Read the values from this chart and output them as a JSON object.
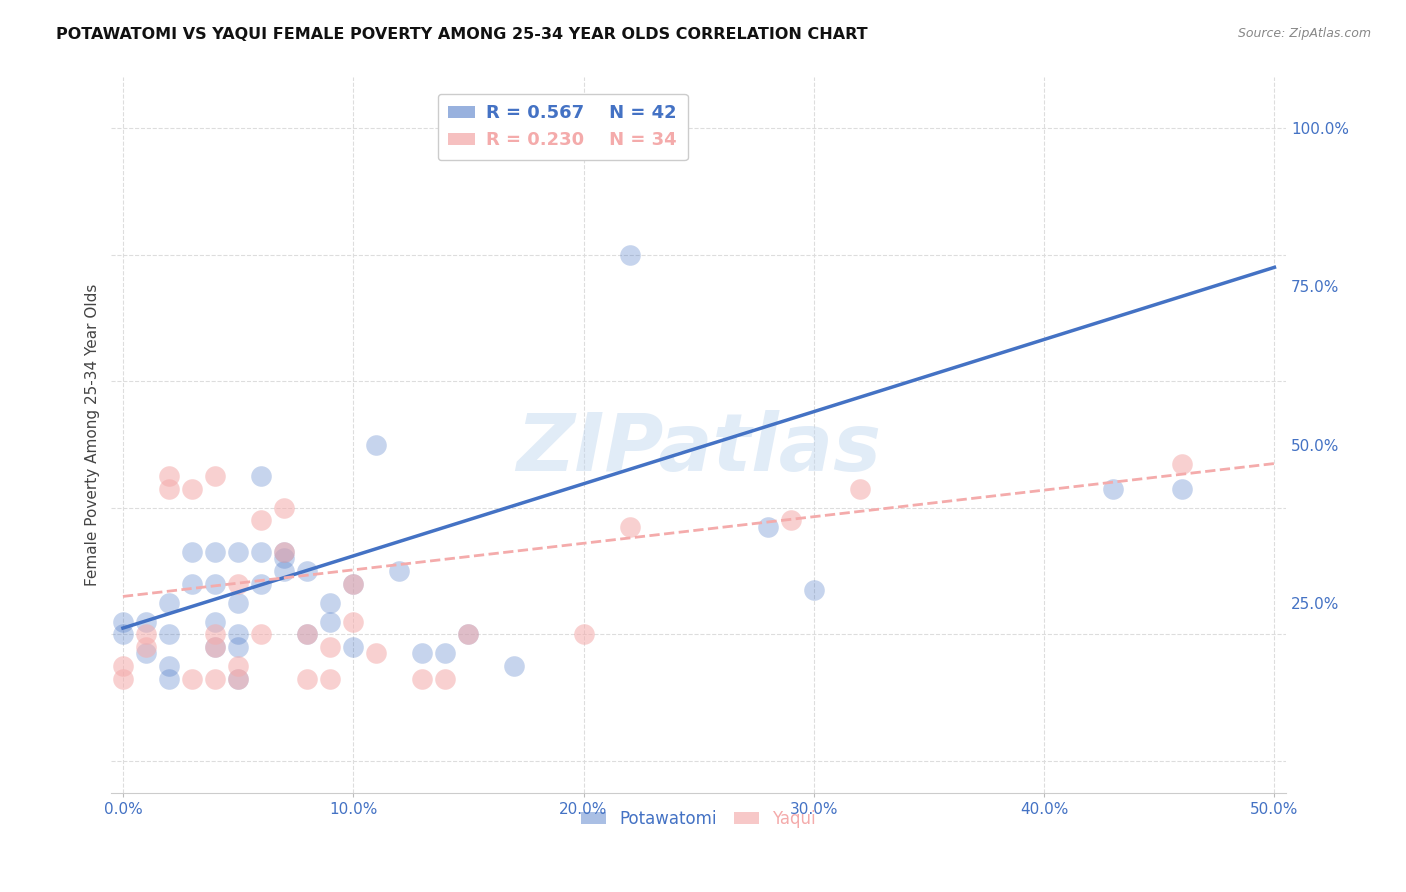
{
  "title": "POTAWATOMI VS YAQUI FEMALE POVERTY AMONG 25-34 YEAR OLDS CORRELATION CHART",
  "source": "Source: ZipAtlas.com",
  "ylabel": "Female Poverty Among 25-34 Year Olds",
  "xlim": [
    -0.005,
    0.505
  ],
  "ylim": [
    -0.05,
    1.08
  ],
  "xticks": [
    0.0,
    0.1,
    0.2,
    0.3,
    0.4,
    0.5
  ],
  "yticks": [
    0.0,
    0.25,
    0.5,
    0.75,
    1.0
  ],
  "xtick_labels": [
    "0.0%",
    "10.0%",
    "20.0%",
    "30.0%",
    "40.0%",
    "50.0%"
  ],
  "ytick_labels": [
    "",
    "25.0%",
    "50.0%",
    "75.0%",
    "100.0%"
  ],
  "watermark": "ZIPatlas",
  "blue_color": "#4472C4",
  "pink_color": "#F4ABAB",
  "legend_blue_R": "R = 0.567",
  "legend_blue_N": "N = 42",
  "legend_pink_R": "R = 0.230",
  "legend_pink_N": "N = 34",
  "potawatomi_x": [
    0.0,
    0.0,
    0.01,
    0.01,
    0.02,
    0.02,
    0.02,
    0.02,
    0.03,
    0.03,
    0.04,
    0.04,
    0.04,
    0.04,
    0.05,
    0.05,
    0.05,
    0.05,
    0.05,
    0.06,
    0.06,
    0.06,
    0.07,
    0.07,
    0.07,
    0.08,
    0.08,
    0.09,
    0.09,
    0.1,
    0.1,
    0.11,
    0.12,
    0.13,
    0.14,
    0.15,
    0.17,
    0.22,
    0.28,
    0.3,
    0.43,
    0.46
  ],
  "potawatomi_y": [
    0.2,
    0.22,
    0.17,
    0.22,
    0.13,
    0.15,
    0.2,
    0.25,
    0.28,
    0.33,
    0.18,
    0.22,
    0.28,
    0.33,
    0.13,
    0.2,
    0.25,
    0.33,
    0.18,
    0.28,
    0.33,
    0.45,
    0.3,
    0.32,
    0.33,
    0.2,
    0.3,
    0.22,
    0.25,
    0.18,
    0.28,
    0.5,
    0.3,
    0.17,
    0.17,
    0.2,
    0.15,
    0.8,
    0.37,
    0.27,
    0.43,
    0.43
  ],
  "yaqui_x": [
    0.0,
    0.0,
    0.01,
    0.01,
    0.02,
    0.02,
    0.03,
    0.03,
    0.04,
    0.04,
    0.04,
    0.04,
    0.05,
    0.05,
    0.05,
    0.06,
    0.06,
    0.07,
    0.07,
    0.08,
    0.08,
    0.09,
    0.09,
    0.1,
    0.1,
    0.11,
    0.13,
    0.14,
    0.15,
    0.2,
    0.22,
    0.29,
    0.32,
    0.46
  ],
  "yaqui_y": [
    0.13,
    0.15,
    0.18,
    0.2,
    0.43,
    0.45,
    0.13,
    0.43,
    0.13,
    0.18,
    0.2,
    0.45,
    0.13,
    0.15,
    0.28,
    0.2,
    0.38,
    0.33,
    0.4,
    0.13,
    0.2,
    0.13,
    0.18,
    0.22,
    0.28,
    0.17,
    0.13,
    0.13,
    0.2,
    0.2,
    0.37,
    0.38,
    0.43,
    0.47
  ],
  "blue_line_x": [
    0.0,
    0.5
  ],
  "blue_line_y": [
    0.21,
    0.78
  ],
  "pink_line_x": [
    0.0,
    0.5
  ],
  "pink_line_y": [
    0.26,
    0.47
  ],
  "grid_color": "#DDDDDD",
  "background_color": "#FFFFFF"
}
